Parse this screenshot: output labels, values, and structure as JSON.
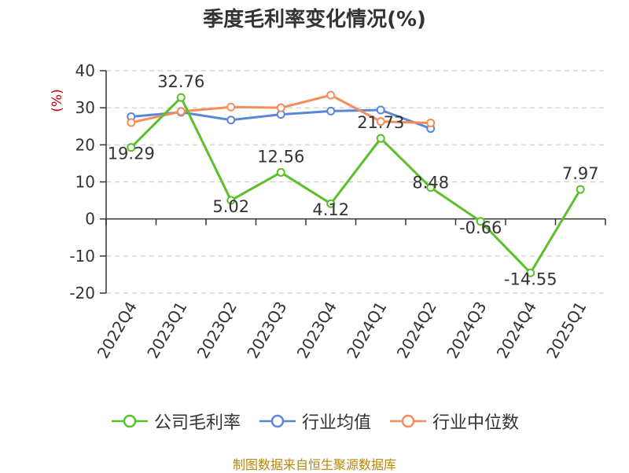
{
  "title": "季度毛利率变化情况(%)",
  "source": "制图数据来自恒生聚源数据库",
  "colors": {
    "company": "#5bbf2a",
    "industry_avg": "#5b86d8",
    "industry_median": "#f58d5b",
    "ylabel": "#cc0000",
    "source": "#b8860b"
  },
  "chart_data": {
    "type": "line",
    "title": "季度毛利率变化情况(%)",
    "ylabel": "(%)",
    "ylim": [
      -20,
      40
    ],
    "yticks": [
      40,
      30,
      20,
      10,
      0,
      -10,
      -20
    ],
    "grid": true,
    "legend_position": "bottom",
    "categories": [
      "2022Q4",
      "2023Q1",
      "2023Q2",
      "2023Q3",
      "2023Q4",
      "2024Q1",
      "2024Q2",
      "2024Q3",
      "2024Q4",
      "2025Q1"
    ],
    "series": [
      {
        "name": "公司毛利率",
        "values": [
          19.29,
          32.76,
          5.02,
          12.56,
          4.12,
          21.73,
          8.48,
          -0.66,
          -14.55,
          7.97
        ],
        "labels": [
          "19.29",
          "32.76",
          "5.02",
          "12.56",
          "4.12",
          "21.73",
          "8.48",
          "-0.66",
          "-14.55",
          "7.97"
        ]
      },
      {
        "name": "行业均值",
        "values": [
          27.6,
          28.8,
          26.7,
          28.2,
          29.1,
          29.4,
          24.4,
          null,
          null,
          null
        ]
      },
      {
        "name": "行业中位数",
        "values": [
          26.0,
          29.0,
          30.2,
          30.0,
          33.4,
          26.3,
          25.9,
          null,
          null,
          null
        ]
      }
    ]
  }
}
